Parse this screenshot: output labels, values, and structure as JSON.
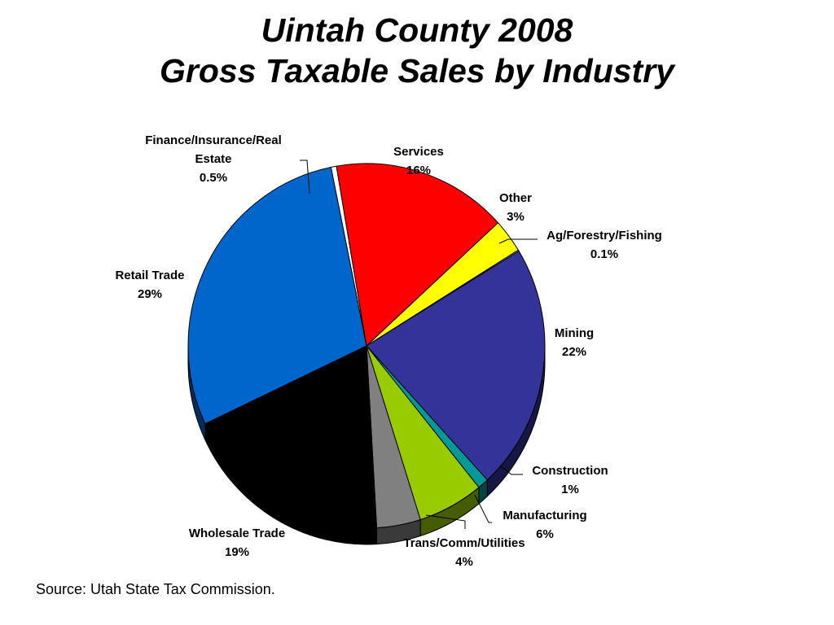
{
  "title": {
    "line1": "Uintah County 2008",
    "line2": "Gross Taxable Sales by Industry"
  },
  "source": "Source: Utah State Tax Commission.",
  "chart_data": {
    "type": "pie",
    "title": "Uintah County 2008 Gross Taxable Sales by Industry",
    "start_angle_deg": 258.5,
    "direction": "clockwise",
    "slices": [
      {
        "key": "finance",
        "label_lines": [
          "Finance/Insurance/Real",
          "Estate"
        ],
        "value_label": "0.5%",
        "value": 0.5,
        "color": "#ffffff"
      },
      {
        "key": "services",
        "label_lines": [
          "Services"
        ],
        "value_label": "16%",
        "value": 16,
        "color": "#ff0000"
      },
      {
        "key": "other",
        "label_lines": [
          "Other"
        ],
        "value_label": "3%",
        "value": 3,
        "color": "#ffff00"
      },
      {
        "key": "ag",
        "label_lines": [
          "Ag/Forestry/Fishing"
        ],
        "value_label": "0.1%",
        "value": 0.1,
        "color": "#ffffff"
      },
      {
        "key": "mining",
        "label_lines": [
          "Mining"
        ],
        "value_label": "22%",
        "value": 22,
        "color": "#333399"
      },
      {
        "key": "construction",
        "label_lines": [
          "Construction"
        ],
        "value_label": "1%",
        "value": 1,
        "color": "#009999"
      },
      {
        "key": "manufacturing",
        "label_lines": [
          "Manufacturing"
        ],
        "value_label": "6%",
        "value": 6,
        "color": "#99cc00"
      },
      {
        "key": "trans",
        "label_lines": [
          "Trans/Comm/Utilities"
        ],
        "value_label": "4%",
        "value": 4,
        "color": "#808080"
      },
      {
        "key": "wholesale",
        "label_lines": [
          "Wholesale Trade"
        ],
        "value_label": "19%",
        "value": 19,
        "color": "#000000"
      },
      {
        "key": "retail",
        "label_lines": [
          "Retail Trade"
        ],
        "value_label": "29%",
        "value": 29,
        "color": "#0066cc"
      }
    ]
  }
}
